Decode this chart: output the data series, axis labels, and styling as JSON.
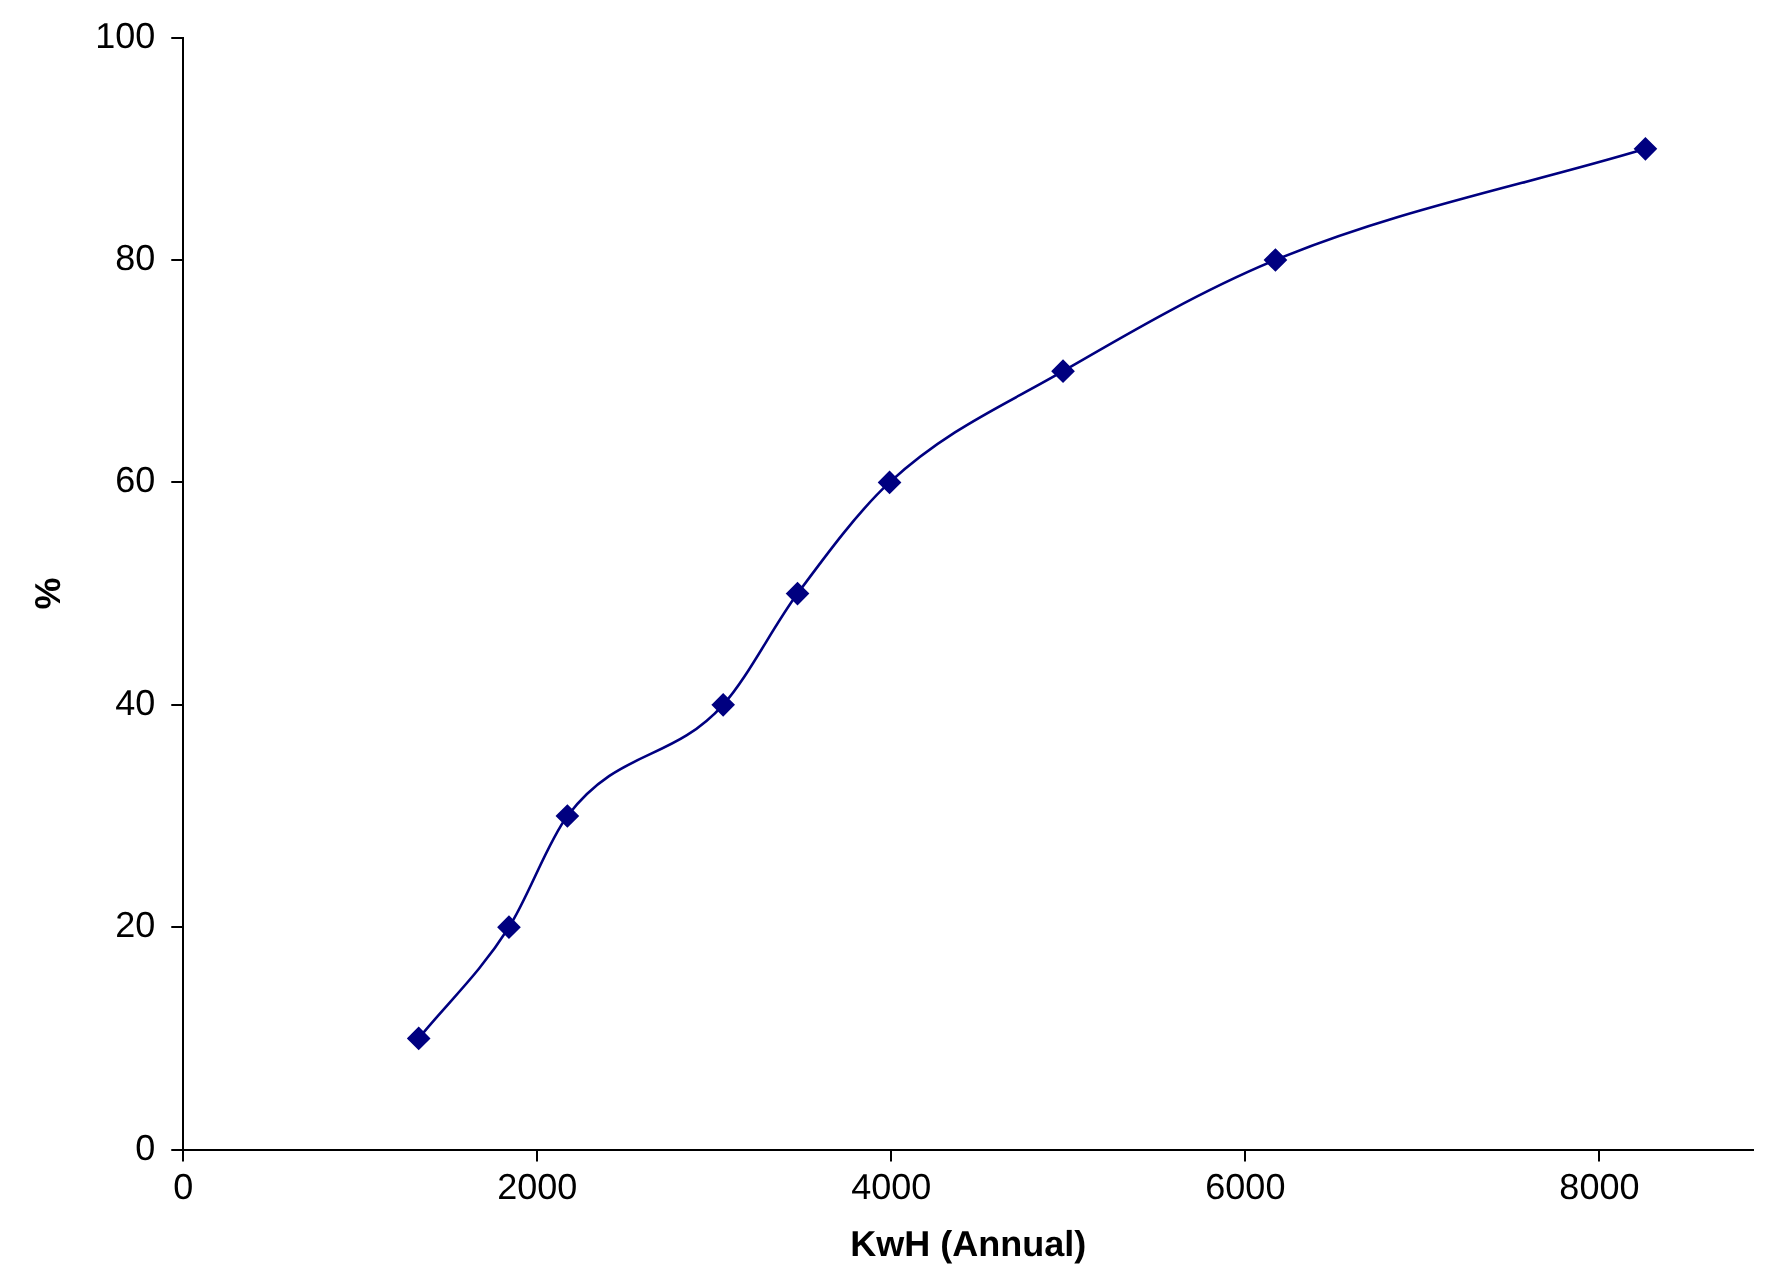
{
  "chart_data": {
    "type": "line",
    "xlabel": "KwH (Annual)",
    "ylabel": "%",
    "x": [
      1330,
      1840,
      2170,
      3050,
      3470,
      3990,
      4970,
      6170,
      8260
    ],
    "series": [
      {
        "color": "#000080",
        "values": [
          10,
          20,
          30,
          40,
          50,
          60,
          70,
          80,
          90
        ]
      }
    ],
    "xlim": [
      0,
      8870
    ],
    "xticks": [
      0,
      2000,
      4000,
      6000,
      8000
    ],
    "ylim": [
      0,
      100
    ],
    "yticks": [
      0,
      20,
      40,
      60,
      80,
      100
    ],
    "grid": false,
    "legend": false,
    "marker": "diamond",
    "line_style": "solid"
  }
}
